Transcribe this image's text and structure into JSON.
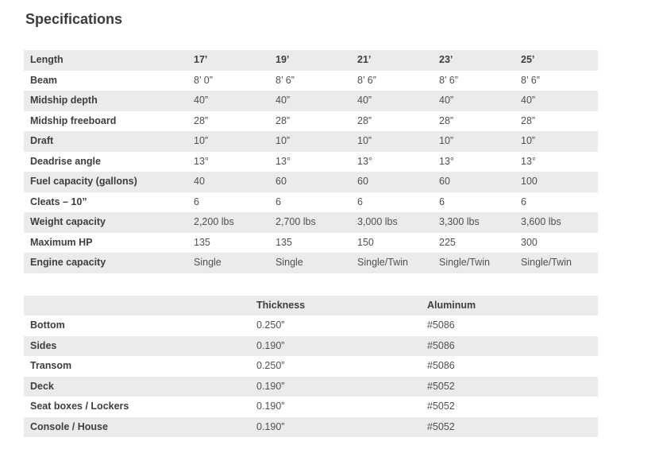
{
  "page": {
    "title": "Specifications"
  },
  "spec_table": {
    "header": [
      "Length",
      "17’",
      "19’",
      "21’",
      "23’",
      "25’"
    ],
    "rows": [
      {
        "label": "Beam",
        "values": [
          "8’ 0”",
          "8’ 6”",
          "8’ 6”",
          "8’ 6”",
          "8’ 6”"
        ]
      },
      {
        "label": "Midship depth",
        "values": [
          "40”",
          "40”",
          "40”",
          "40”",
          "40”"
        ]
      },
      {
        "label": "Midship freeboard",
        "values": [
          "28”",
          "28”",
          "28”",
          "28”",
          "28”"
        ]
      },
      {
        "label": "Draft",
        "values": [
          "10”",
          "10”",
          "10”",
          "10”",
          "10”"
        ]
      },
      {
        "label": "Deadrise angle",
        "values": [
          "13°",
          "13°",
          "13°",
          "13°",
          "13°"
        ]
      },
      {
        "label": "Fuel capacity (gallons)",
        "values": [
          "40",
          "60",
          "60",
          "60",
          "100"
        ]
      },
      {
        "label": "Cleats – 10”",
        "values": [
          "6",
          "6",
          "6",
          "6",
          "6"
        ]
      },
      {
        "label": "Weight capacity",
        "values": [
          "2,200 lbs",
          "2,700 lbs",
          "3,000 lbs",
          "3,300 lbs",
          "3,600 lbs"
        ]
      },
      {
        "label": "Maximum HP",
        "values": [
          "135",
          "135",
          "150",
          "225",
          "300"
        ]
      },
      {
        "label": "Engine capacity",
        "values": [
          "Single",
          "Single",
          "Single/Twin",
          "Single/Twin",
          "Single/Twin"
        ]
      }
    ]
  },
  "hull_table": {
    "header": [
      "",
      "Thickness",
      "Aluminum"
    ],
    "rows": [
      {
        "label": "Bottom",
        "values": [
          "0.250”",
          "#5086"
        ]
      },
      {
        "label": "Sides",
        "values": [
          "0.190”",
          "#5086"
        ]
      },
      {
        "label": "Transom",
        "values": [
          "0.250”",
          "#5086"
        ]
      },
      {
        "label": "Deck",
        "values": [
          "0.190”",
          "#5052"
        ]
      },
      {
        "label": "Seat boxes / Lockers",
        "values": [
          "0.190”",
          "#5052"
        ]
      },
      {
        "label": "Console / House",
        "values": [
          "0.190”",
          "#5052"
        ]
      }
    ]
  }
}
